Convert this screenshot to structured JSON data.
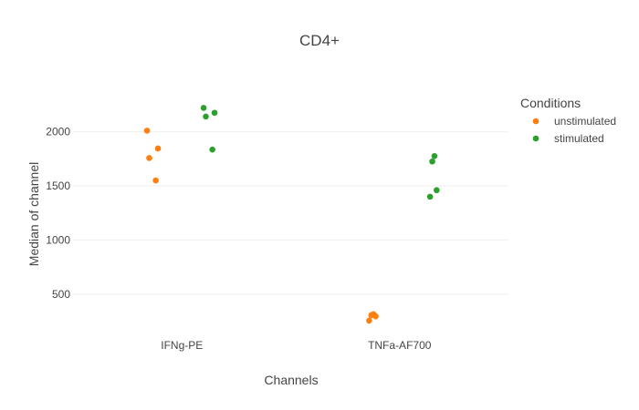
{
  "chart_data": {
    "type": "scatter",
    "title": "CD4+",
    "xlabel": "Channels",
    "ylabel": "Median of channel",
    "categories": [
      "IFNg-PE",
      "TNFa-AF700"
    ],
    "yticks": [
      500,
      1000,
      1500,
      2000
    ],
    "ylim": [
      145,
      2375
    ],
    "grid": true,
    "legend": {
      "title": "Conditions",
      "placement": "right"
    },
    "series": [
      {
        "name": "unstimulated",
        "color": "#ff7f0e",
        "points": [
          {
            "category": "IFNg-PE",
            "jitter": -0.16,
            "y": 2010
          },
          {
            "category": "IFNg-PE",
            "jitter": -0.15,
            "y": 1757
          },
          {
            "category": "IFNg-PE",
            "jitter": -0.12,
            "y": 1550
          },
          {
            "category": "IFNg-PE",
            "jitter": -0.11,
            "y": 1845
          },
          {
            "category": "TNFa-AF700",
            "jitter": -0.14,
            "y": 255
          },
          {
            "category": "TNFa-AF700",
            "jitter": -0.13,
            "y": 305
          },
          {
            "category": "TNFa-AF700",
            "jitter": -0.12,
            "y": 315
          },
          {
            "category": "TNFa-AF700",
            "jitter": -0.11,
            "y": 295
          }
        ]
      },
      {
        "name": "stimulated",
        "color": "#2ca02c",
        "points": [
          {
            "category": "IFNg-PE",
            "jitter": 0.1,
            "y": 2220
          },
          {
            "category": "IFNg-PE",
            "jitter": 0.11,
            "y": 2140
          },
          {
            "category": "IFNg-PE",
            "jitter": 0.14,
            "y": 1835
          },
          {
            "category": "IFNg-PE",
            "jitter": 0.15,
            "y": 2175
          },
          {
            "category": "TNFa-AF700",
            "jitter": 0.14,
            "y": 1400
          },
          {
            "category": "TNFa-AF700",
            "jitter": 0.15,
            "y": 1725
          },
          {
            "category": "TNFa-AF700",
            "jitter": 0.16,
            "y": 1775
          },
          {
            "category": "TNFa-AF700",
            "jitter": 0.17,
            "y": 1460
          }
        ]
      }
    ]
  }
}
